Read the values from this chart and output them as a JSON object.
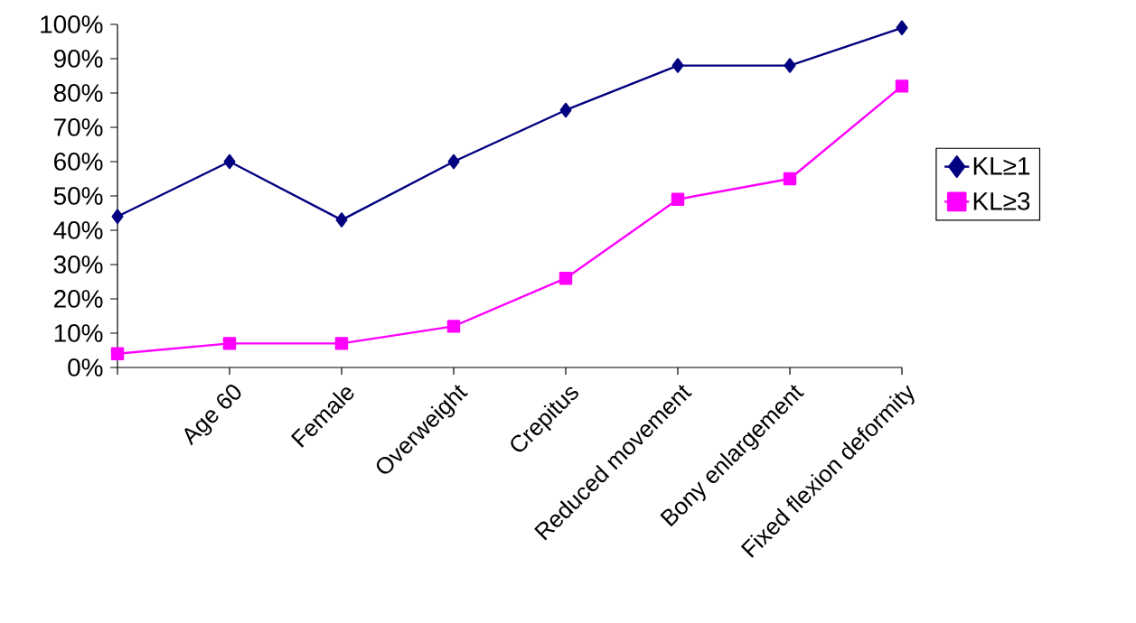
{
  "chart_data": {
    "type": "line",
    "categories": [
      null,
      "Age 60",
      "Female",
      "Overweight",
      "Crepitus",
      "Reduced movement",
      "Bony enlargement",
      "Fixed flexion deformity"
    ],
    "series": [
      {
        "name": "KL≥1",
        "color": "#000080",
        "marker": "diamond",
        "values": [
          44,
          60,
          43,
          60,
          75,
          88,
          88,
          99
        ]
      },
      {
        "name": "KL≥3",
        "color": "#ff00ff",
        "marker": "square",
        "values": [
          4,
          7,
          7,
          12,
          26,
          49,
          55,
          82
        ]
      }
    ],
    "ylim": [
      0,
      100
    ],
    "yticks": [
      {
        "value": 0,
        "label": "0%"
      },
      {
        "value": 10,
        "label": "10%"
      },
      {
        "value": 20,
        "label": "20%"
      },
      {
        "value": 30,
        "label": "30%"
      },
      {
        "value": 40,
        "label": "40%"
      },
      {
        "value": 50,
        "label": "50%"
      },
      {
        "value": 60,
        "label": "60%"
      },
      {
        "value": 70,
        "label": "70%"
      },
      {
        "value": 80,
        "label": "80%"
      },
      {
        "value": 90,
        "label": "90%"
      },
      {
        "value": 100,
        "label": "100%"
      }
    ],
    "legend": "right"
  }
}
